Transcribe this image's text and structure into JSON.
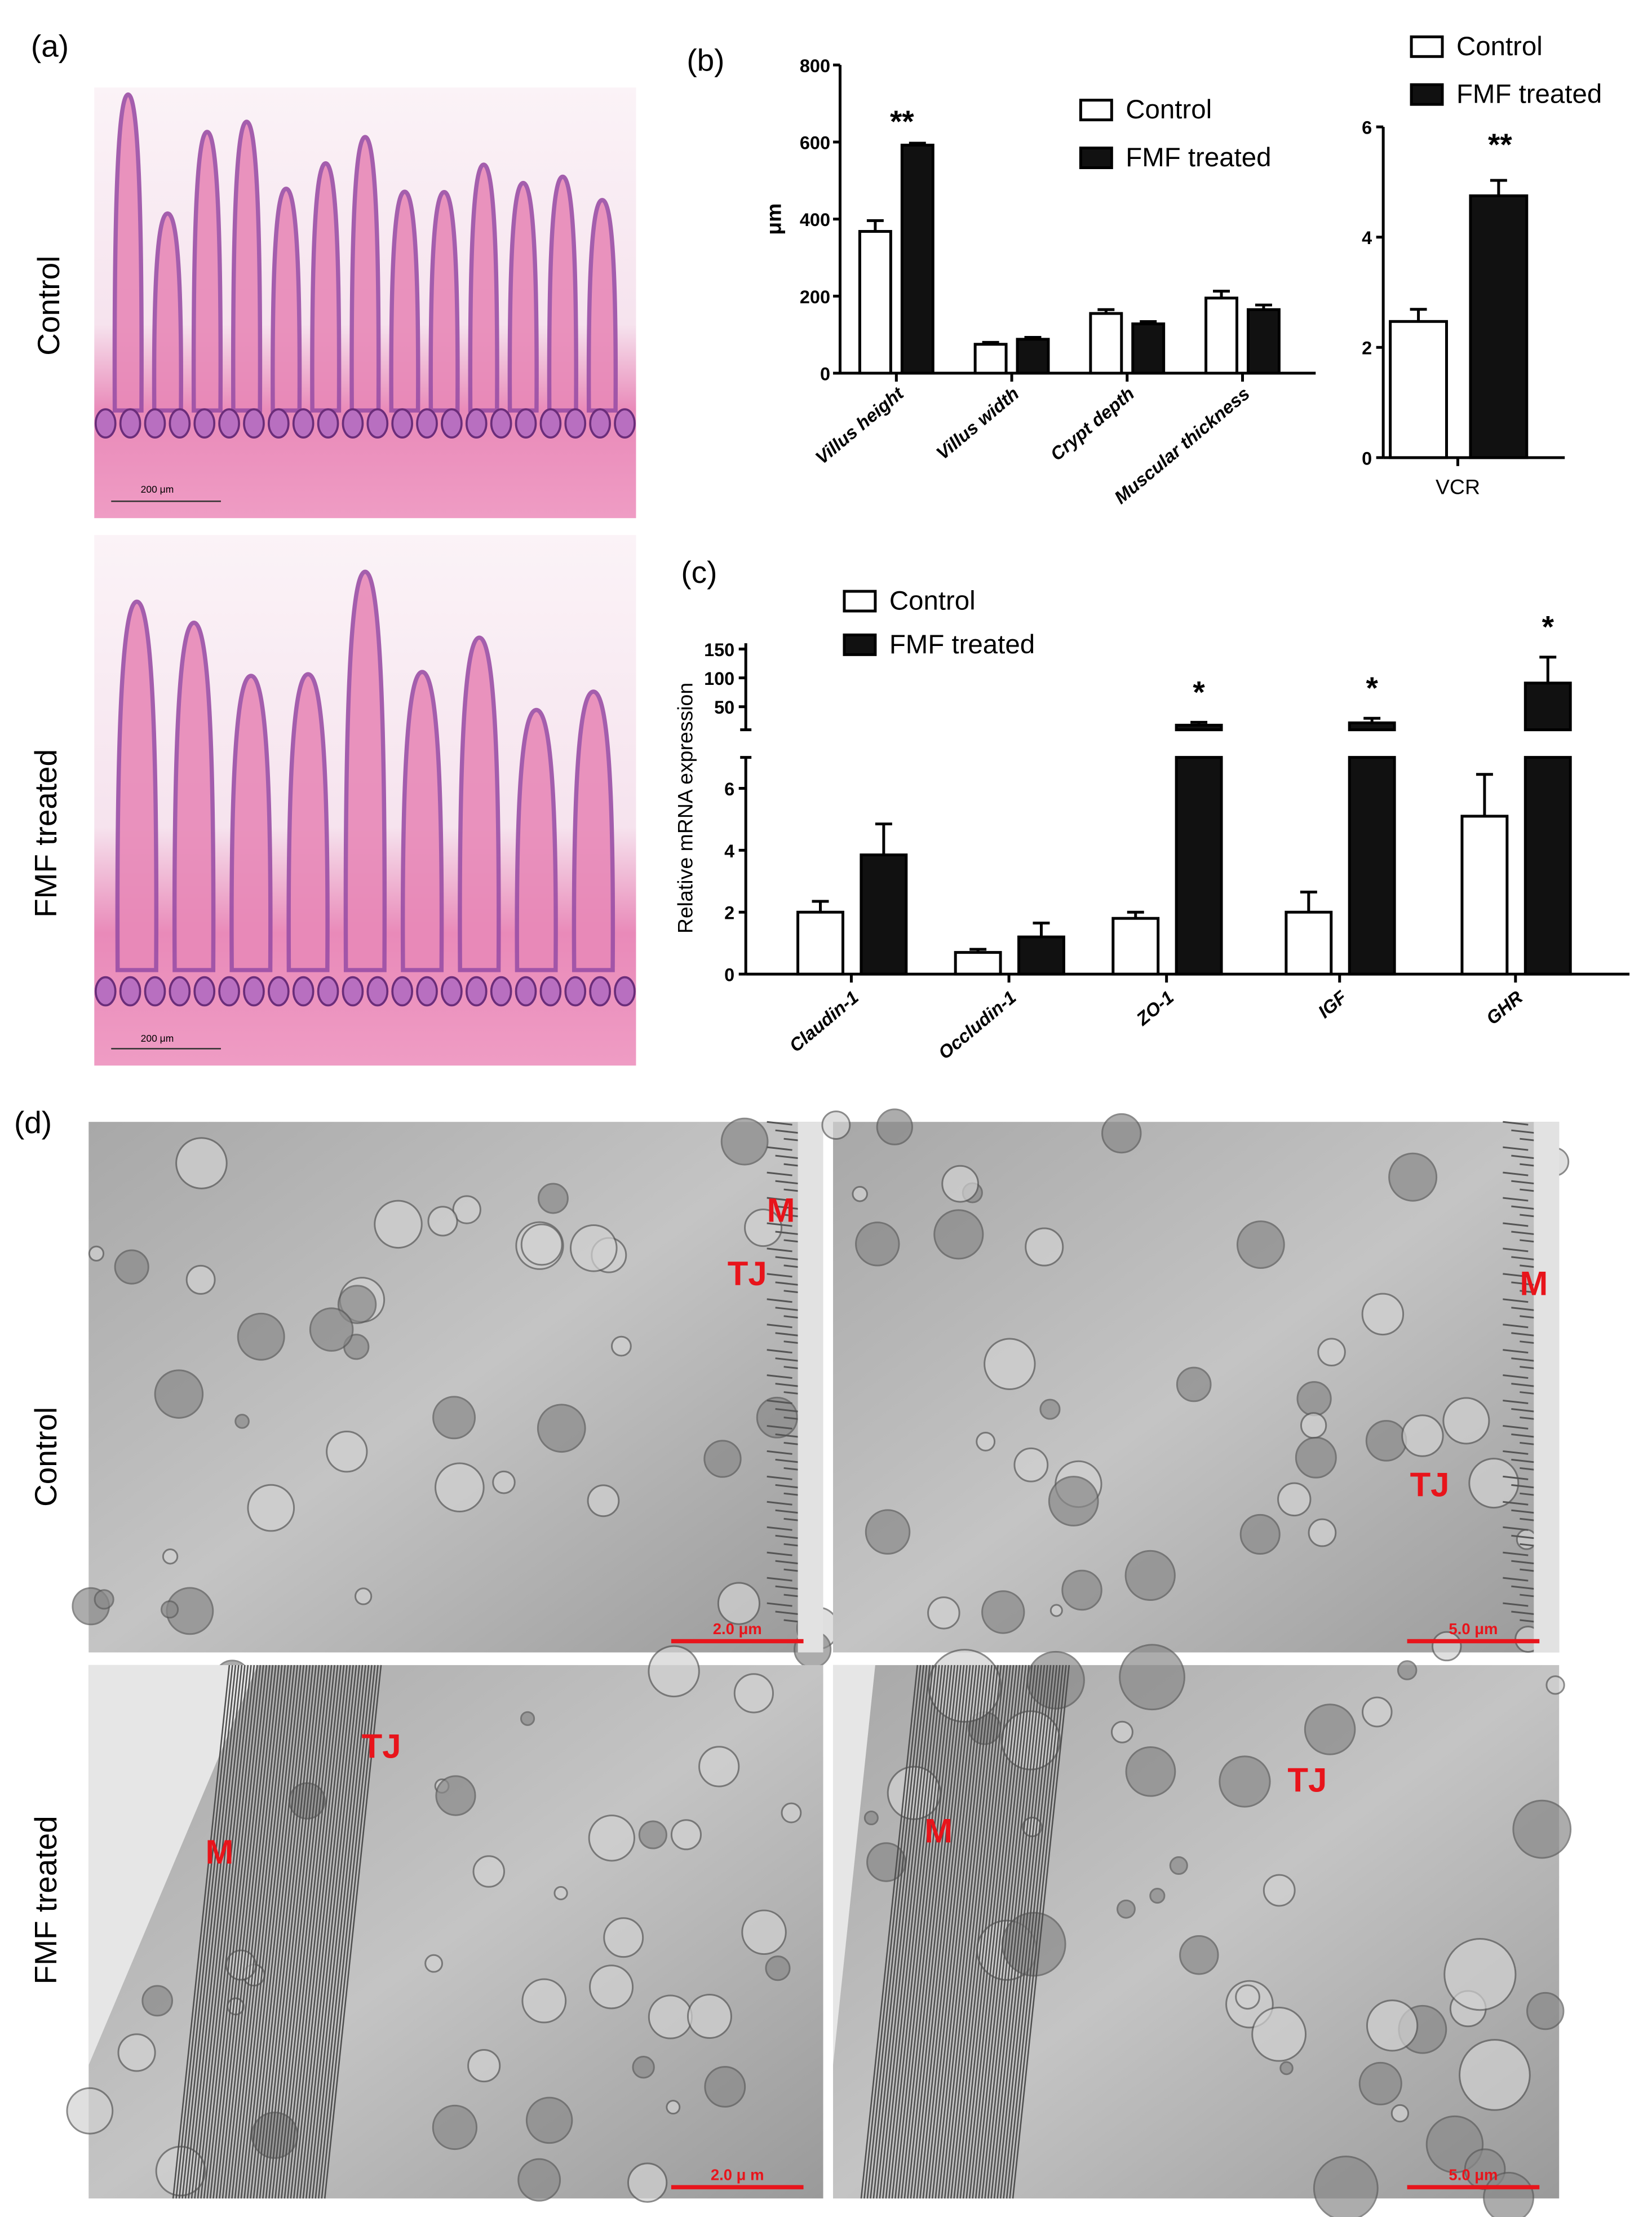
{
  "panels": {
    "a": {
      "label": "(a)",
      "rows": [
        "Control",
        "FMF treated"
      ],
      "scale_bar": "200 μm"
    },
    "b": {
      "label": "(b)"
    },
    "c": {
      "label": "(c)"
    },
    "d": {
      "label": "(d)",
      "rows": [
        "Control",
        "FMF treated"
      ],
      "images": [
        {
          "labels": [
            "M",
            "TJ"
          ],
          "scale_bar": "2.0 μm"
        },
        {
          "labels": [
            "M",
            "TJ"
          ],
          "scale_bar": "5.0 μm"
        },
        {
          "labels": [
            "M",
            "TJ"
          ],
          "scale_bar": "2.0 μ m"
        },
        {
          "labels": [
            "M",
            "TJ"
          ],
          "scale_bar": "5.0 μm"
        }
      ]
    }
  },
  "colors": {
    "control": "#ffffff",
    "fmf": "#111111",
    "annotation": "#e8141b",
    "he_pink": "#e889b8",
    "he_purple": "#9b4fa6"
  },
  "chart_data": [
    {
      "id": "morphology",
      "type": "bar",
      "categories": [
        "Villus height",
        "Villus width",
        "Crypt depth",
        "Muscular thickness"
      ],
      "ylabel": "μm",
      "ylim": [
        0,
        800
      ],
      "yticks": [
        0,
        200,
        400,
        600,
        800
      ],
      "legend": "top-right",
      "series": [
        {
          "name": "Control",
          "values": [
            368,
            75,
            155,
            195
          ],
          "errors": [
            28,
            5,
            10,
            18
          ]
        },
        {
          "name": "FMF treated",
          "values": [
            592,
            88,
            128,
            165
          ],
          "errors": [
            5,
            5,
            6,
            12
          ]
        }
      ],
      "annotations": [
        {
          "category": "Villus height",
          "text": "**"
        }
      ]
    },
    {
      "id": "vcr",
      "type": "bar",
      "categories": [
        "VCR"
      ],
      "ylim": [
        0,
        6
      ],
      "yticks": [
        0,
        2,
        4,
        6
      ],
      "legend": "top",
      "series": [
        {
          "name": "Control",
          "values": [
            2.47
          ],
          "errors": [
            0.22
          ]
        },
        {
          "name": "FMF treated",
          "values": [
            4.75
          ],
          "errors": [
            0.28
          ]
        }
      ],
      "annotations": [
        {
          "category": "VCR",
          "text": "**"
        }
      ]
    },
    {
      "id": "mrna",
      "type": "bar",
      "categories": [
        "Claudin-1",
        "Occludin-1",
        "ZO-1",
        "IGF",
        "GHR"
      ],
      "ylabel": "Relative mRNA expression",
      "broken_axis": {
        "lower": [
          0,
          7
        ],
        "upper": [
          10,
          160
        ]
      },
      "yticks_lower": [
        0,
        2,
        4,
        6
      ],
      "yticks_upper": [
        50,
        100,
        150
      ],
      "legend": "top-left",
      "series": [
        {
          "name": "Control",
          "values": [
            2.0,
            0.7,
            1.8,
            2.0,
            5.1
          ],
          "errors": [
            0.35,
            0.1,
            0.2,
            0.65,
            1.35
          ]
        },
        {
          "name": "FMF treated",
          "values": [
            3.85,
            1.2,
            18,
            22,
            91
          ],
          "errors": [
            1.0,
            0.45,
            5,
            8,
            45
          ]
        }
      ],
      "annotations": [
        {
          "category": "ZO-1",
          "text": "*"
        },
        {
          "category": "IGF",
          "text": "*"
        },
        {
          "category": "GHR",
          "text": "*"
        }
      ]
    }
  ]
}
